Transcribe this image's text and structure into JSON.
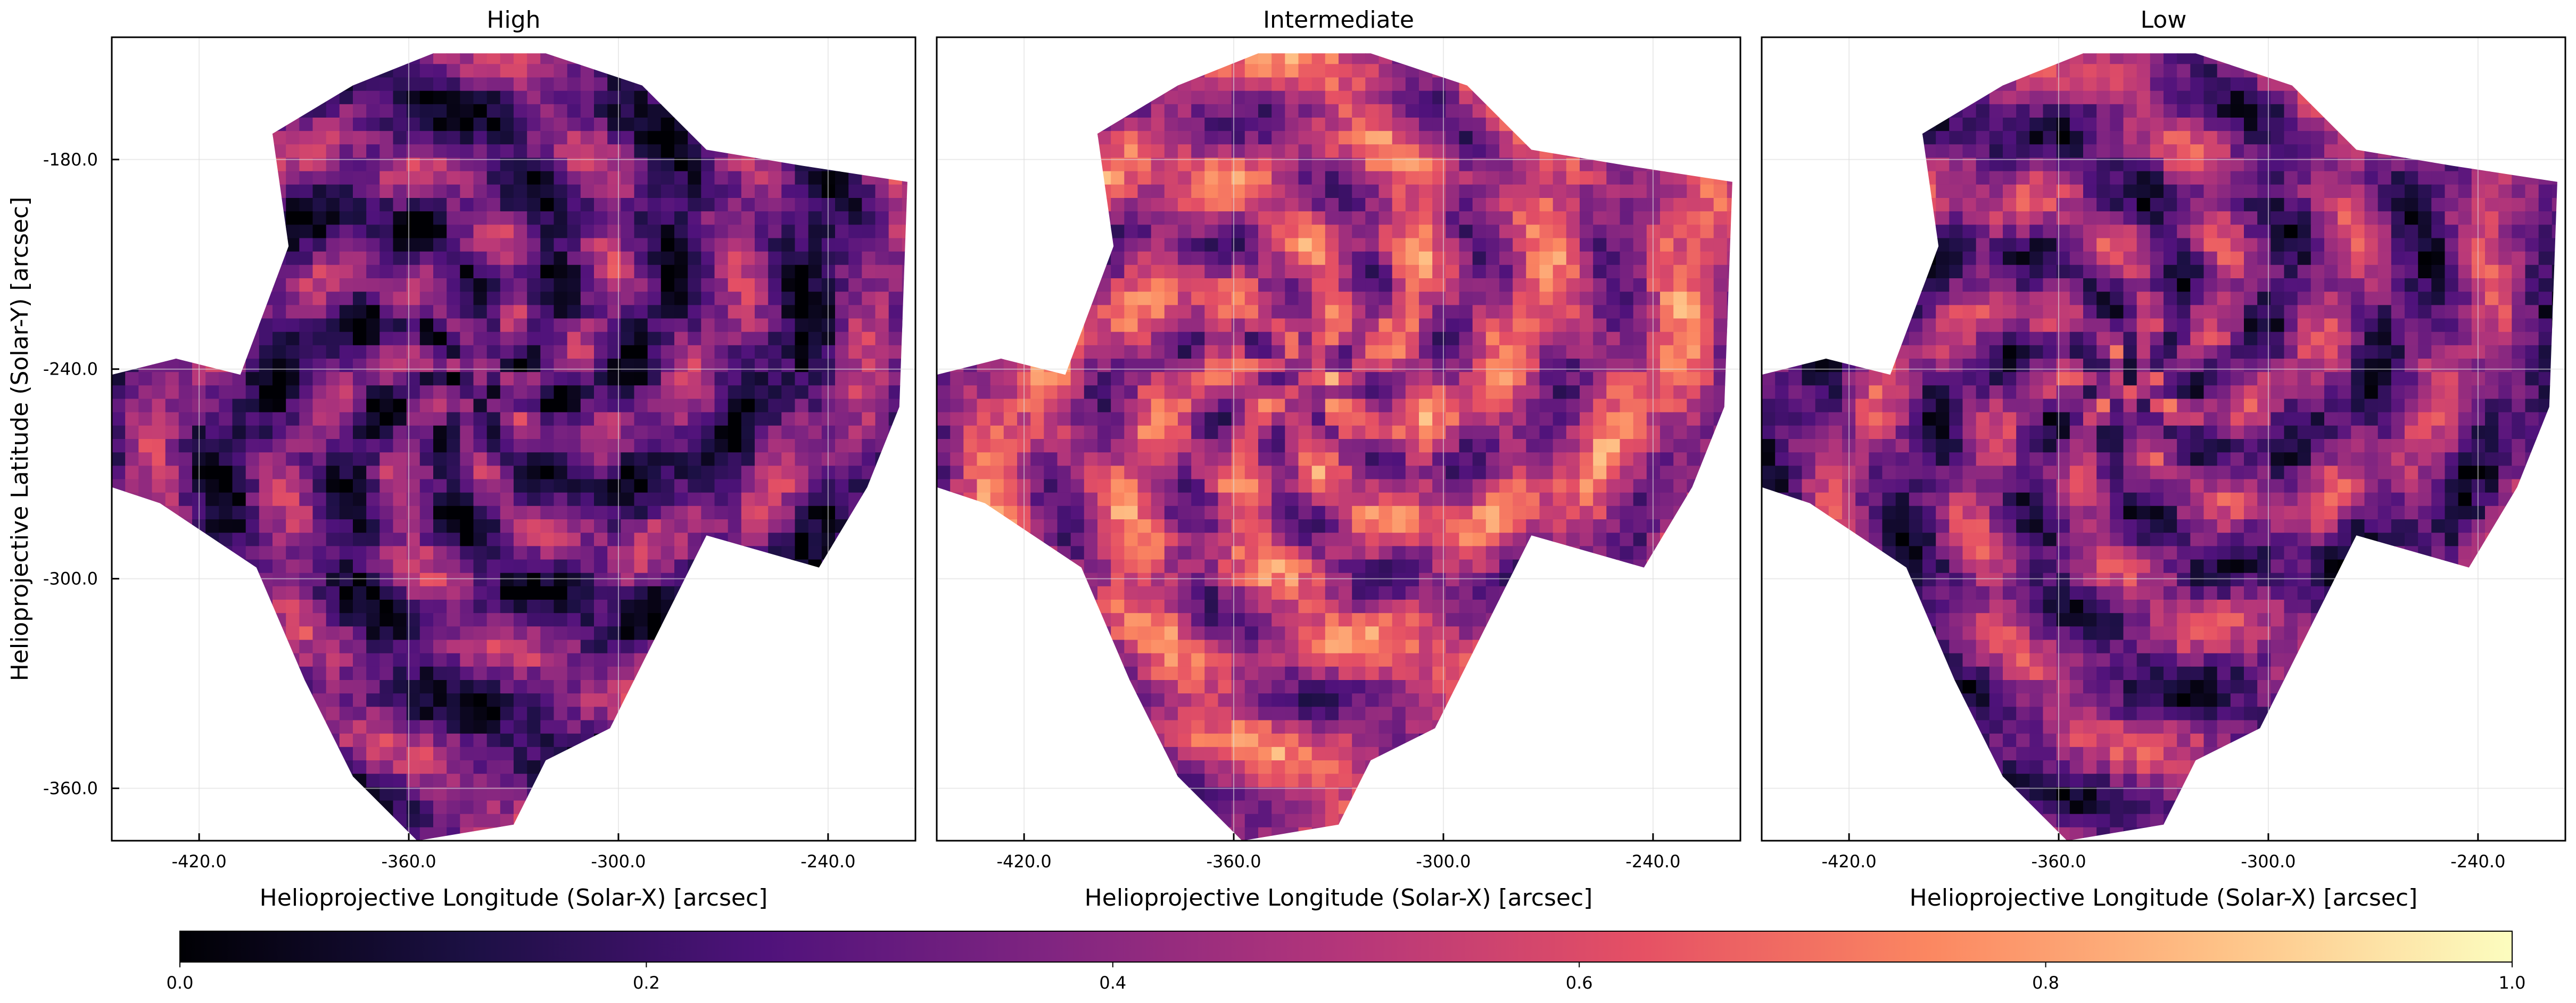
{
  "chart_data": {
    "type": "heatmap",
    "colormap": "magma",
    "grid": true,
    "panels": [
      {
        "title": "High",
        "xlabel": "Helioprojective Longitude (Solar-X) [arcsec]",
        "ylabel": "Helioprojective Latitude (Solar-Y) [arcsec]",
        "xlim": [
          -445,
          -215
        ],
        "ylim": [
          -375,
          -145
        ],
        "xticks": [
          -420.0,
          -360.0,
          -300.0,
          -240.0
        ],
        "xtick_labels": [
          "-420.0",
          "-360.0",
          "-300.0",
          "-240.0"
        ],
        "yticks": [
          -180.0,
          -240.0,
          -300.0,
          -360.0
        ],
        "ytick_labels": [
          "-180.0",
          "-240.0",
          "-300.0",
          "-360.0"
        ],
        "typical_value": 0.28
      },
      {
        "title": "Intermediate",
        "xlabel": "Helioprojective Longitude (Solar-X) [arcsec]",
        "xlim": [
          -445,
          -215
        ],
        "ylim": [
          -375,
          -145
        ],
        "xticks": [
          -420.0,
          -360.0,
          -300.0,
          -240.0
        ],
        "xtick_labels": [
          "-420.0",
          "-360.0",
          "-300.0",
          "-240.0"
        ],
        "typical_value": 0.5
      },
      {
        "title": "Low",
        "xlabel": "Helioprojective Longitude (Solar-X) [arcsec]",
        "xlim": [
          -445,
          -215
        ],
        "ylim": [
          -375,
          -145
        ],
        "xticks": [
          -420.0,
          -360.0,
          -300.0,
          -240.0
        ],
        "xtick_labels": [
          "-420.0",
          "-360.0",
          "-300.0",
          "-240.0"
        ],
        "typical_value": 0.35
      }
    ],
    "colorbar": {
      "orientation": "horizontal",
      "range": [
        0.0,
        1.0
      ],
      "ticks": [
        0.0,
        0.2,
        0.4,
        0.6,
        0.8,
        1.0
      ],
      "tick_labels": [
        "0.0",
        "0.2",
        "0.4",
        "0.6",
        "0.8",
        "1.0"
      ]
    },
    "colors": {
      "magma_stops": [
        "#000004",
        "#1c1044",
        "#4f127b",
        "#812581",
        "#b5367a",
        "#e55064",
        "#fb8761",
        "#fec287",
        "#fcfdbf"
      ],
      "axis": "#000000",
      "grid": "#dddddd",
      "background": "#ffffff"
    }
  }
}
